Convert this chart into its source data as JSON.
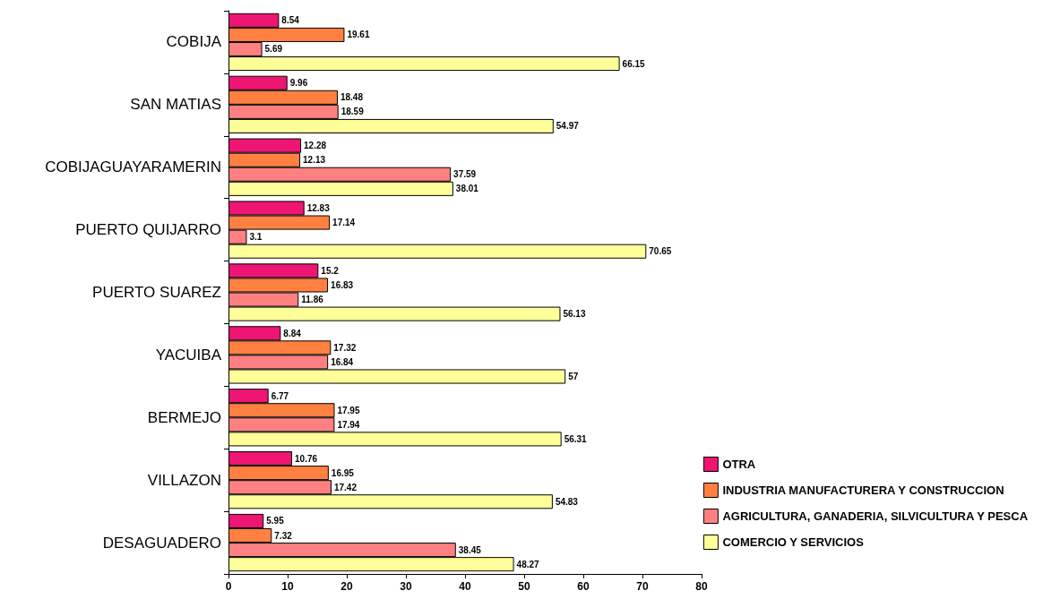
{
  "chart_data": {
    "type": "bar",
    "orientation": "horizontal",
    "categories": [
      "COBIJA",
      "SAN MATIAS",
      "COBIJAGUAYARAMERIN",
      "PUERTO QUIJARRO",
      "PUERTO SUAREZ",
      "YACUIBA",
      "BERMEJO",
      "VILLAZON",
      "DESAGUADERO"
    ],
    "series": [
      {
        "name": "OTRA",
        "color": "#ee1573",
        "values": [
          8.54,
          9.96,
          12.28,
          12.83,
          15.2,
          8.84,
          6.77,
          10.76,
          5.95
        ]
      },
      {
        "name": "INDUSTRIA MANUFACTURERA Y CONSTRUCCION",
        "color": "#ff8040",
        "values": [
          19.61,
          18.48,
          12.13,
          17.14,
          16.83,
          17.32,
          17.95,
          16.95,
          7.32
        ]
      },
      {
        "name": "AGRICULTURA, GANADERIA, SILVICULTURA Y PESCA",
        "color": "#ff8080",
        "values": [
          5.69,
          18.59,
          37.59,
          3.1,
          11.86,
          16.84,
          17.94,
          17.42,
          38.45
        ]
      },
      {
        "name": "COMERCIO Y SERVICIOS",
        "color": "#ffff99",
        "values": [
          66.15,
          54.97,
          38.01,
          70.65,
          56.13,
          57,
          56.31,
          54.83,
          48.27
        ]
      }
    ],
    "xlim": [
      0,
      80
    ],
    "xticks": [
      0,
      10,
      20,
      30,
      40,
      50,
      60,
      70,
      80
    ],
    "grid": false,
    "legend": "bottom right",
    "data_labels": true
  }
}
